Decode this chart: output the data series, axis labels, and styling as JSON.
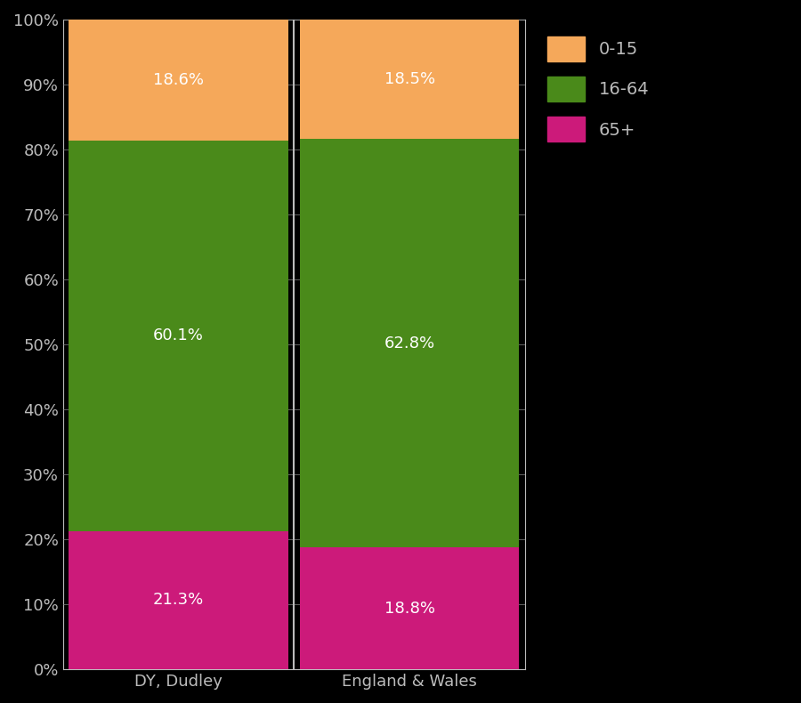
{
  "categories": [
    "DY, Dudley",
    "England & Wales"
  ],
  "segments": {
    "65+": [
      21.3,
      18.8
    ],
    "16-64": [
      60.1,
      62.8
    ],
    "0-15": [
      18.6,
      18.5
    ]
  },
  "colors": {
    "65+": "#CC1A7A",
    "16-64": "#4A8A1A",
    "0-15": "#F5A85A"
  },
  "label_colors": {
    "65+": "white",
    "16-64": "white",
    "0-15": "white"
  },
  "background_color": "#000000",
  "text_color": "#BBBBBB",
  "bar_width": 0.95,
  "ylim": [
    0,
    100
  ],
  "yticks": [
    0,
    10,
    20,
    30,
    40,
    50,
    60,
    70,
    80,
    90,
    100
  ],
  "ytick_labels": [
    "0%",
    "10%",
    "20%",
    "30%",
    "40%",
    "50%",
    "60%",
    "70%",
    "80%",
    "90%",
    "100%"
  ],
  "legend_labels": [
    "0-15",
    "16-64",
    "65+"
  ],
  "segment_order": [
    "65+",
    "16-64",
    "0-15"
  ],
  "grid_color": "#888888",
  "separator_color": "#BBBBBB",
  "label_fontsize": 13,
  "tick_fontsize": 13,
  "legend_fontsize": 14
}
